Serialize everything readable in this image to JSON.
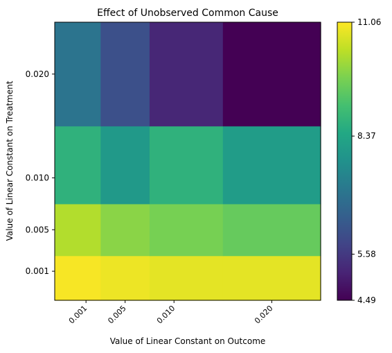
{
  "chart_data": {
    "type": "heatmap",
    "title": "Effect of Unobserved Common Cause",
    "xlabel": "Value of Linear Constant on Outcome",
    "ylabel": "Value of Linear Constant on Treatment",
    "x_ticks": [
      "0.001",
      "0.005",
      "0.010",
      "0.020"
    ],
    "y_ticks": [
      "0.001",
      "0.005",
      "0.010",
      "0.020"
    ],
    "x_edges": [
      -0.0022,
      0.0025,
      0.0075,
      0.015,
      0.025
    ],
    "y_edges": [
      -0.0018,
      0.0025,
      0.0075,
      0.015,
      0.025
    ],
    "colorbar": {
      "min": 4.49,
      "max": 11.06,
      "ticks": [
        "4.49",
        "5.58",
        "8.37",
        "11.06"
      ]
    },
    "values": [
      [
        11.0,
        10.9,
        10.8,
        10.8
      ],
      [
        10.3,
        9.9,
        9.7,
        9.5
      ],
      [
        8.7,
        8.0,
        8.7,
        8.1
      ],
      [
        7.0,
        6.1,
        5.2,
        4.49
      ]
    ]
  }
}
